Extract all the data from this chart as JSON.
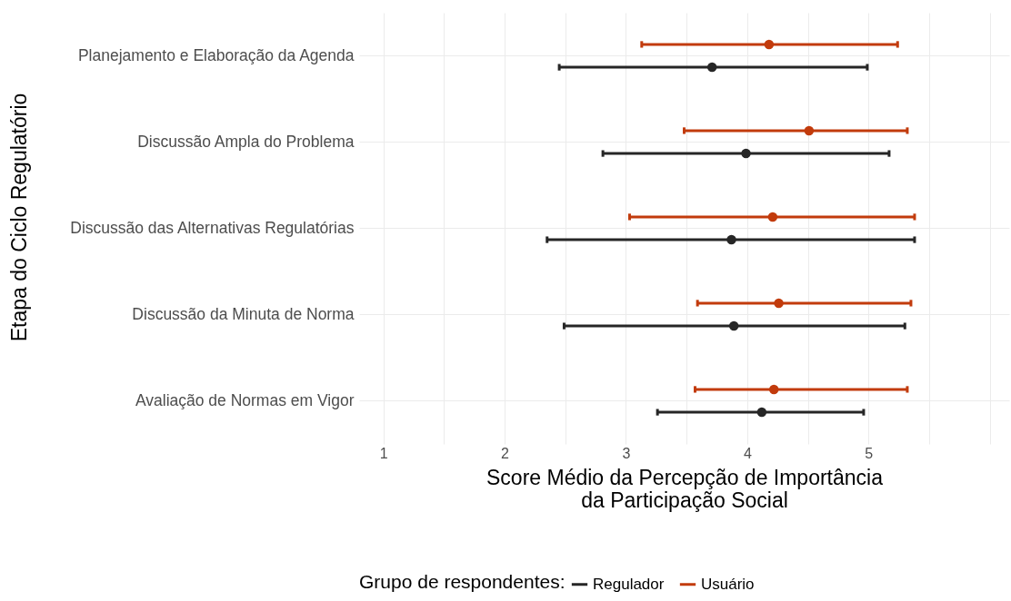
{
  "chart_data": {
    "type": "scatter",
    "xlabel": "Score Médio da Percepção de Importância\nda Participação Social",
    "ylabel": "Etapa do Ciclo Regulatório",
    "legend_title": "Grupo de respondentes:",
    "legend": "bottom",
    "grid": true,
    "marker": "circle",
    "orientation": "horizontal",
    "categories": [
      "Planejamento e Elaboração da Agenda",
      "Discussão Ampla do Problema",
      "Discussão das Alternativas Regulatórias",
      "Discussão da Minuta de Norma",
      "Avaliação de Normas em Vigor"
    ],
    "xlim": [
      0.8,
      6.16
    ],
    "xticks": [
      1,
      {
        "value": 1.5,
        "label": null
      },
      2,
      {
        "value": 2.5,
        "label": null
      },
      3,
      {
        "value": 3.5,
        "label": null
      },
      4,
      {
        "value": 4.5,
        "label": null
      },
      5,
      {
        "value": 5.5,
        "label": null
      },
      {
        "value": 6,
        "label": null
      }
    ],
    "series": [
      {
        "name": "Regulador",
        "color": "#262626",
        "values": [
          3.71,
          3.99,
          3.87,
          3.89,
          4.12
        ],
        "errors": [
          [
            2.45,
            4.99
          ],
          [
            2.81,
            5.17
          ],
          [
            2.35,
            5.38
          ],
          [
            2.49,
            5.3
          ],
          [
            3.26,
            4.96
          ]
        ]
      },
      {
        "name": "Usuário",
        "color": "#c23b0c",
        "values": [
          4.18,
          4.51,
          4.21,
          4.26,
          4.22
        ],
        "errors": [
          [
            3.13,
            5.24
          ],
          [
            3.48,
            5.32
          ],
          [
            3.03,
            5.38
          ],
          [
            3.59,
            5.35
          ],
          [
            3.57,
            5.32
          ]
        ]
      }
    ]
  }
}
